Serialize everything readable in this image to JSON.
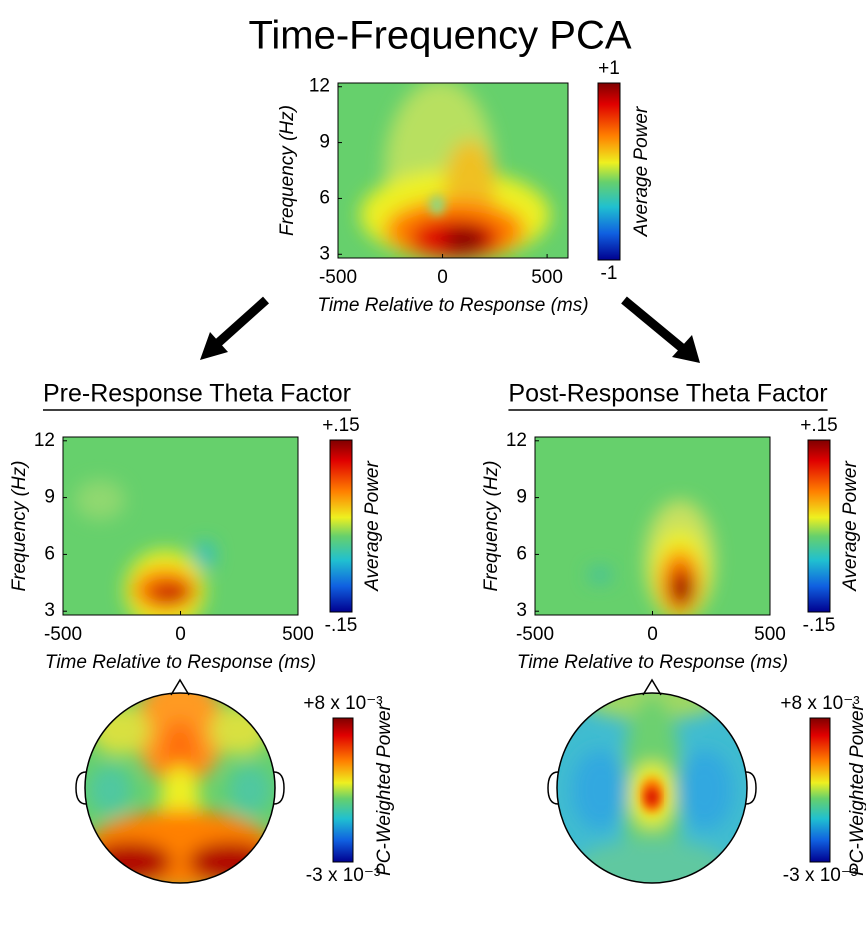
{
  "title": "Time-Frequency PCA",
  "chart_data": [
    {
      "type": "heatmap",
      "xlabel": "Time Relative to Response (ms)",
      "ylabel": "Frequency (Hz)",
      "xlim": [
        -500,
        600
      ],
      "ylim": [
        2.8,
        12.2
      ],
      "xticks": [
        -500,
        0,
        500
      ],
      "yticks": [
        3,
        6,
        9,
        12
      ],
      "colorbar_label": "Average Power",
      "clim": [
        -1,
        1
      ],
      "cticks": [
        {
          "value": 1,
          "label": "+1"
        },
        {
          "value": -1,
          "label": "-1"
        }
      ]
    },
    {
      "type": "heatmap",
      "title": "Pre-Response Theta Factor",
      "xlabel": "Time Relative to Response (ms)",
      "ylabel": "Frequency (Hz)",
      "xlim": [
        -500,
        500
      ],
      "ylim": [
        2.8,
        12.2
      ],
      "xticks": [
        -500,
        0,
        500
      ],
      "yticks": [
        3,
        6,
        9,
        12
      ],
      "colorbar_label": "Average Power",
      "clim": [
        -0.15,
        0.15
      ],
      "cticks": [
        {
          "value": 0.15,
          "label": "+.15"
        },
        {
          "value": -0.15,
          "label": "-.15"
        }
      ]
    },
    {
      "type": "heatmap",
      "title": "Post-Response Theta Factor",
      "xlabel": "Time Relative to Response (ms)",
      "ylabel": "Frequency (Hz)",
      "xlim": [
        -500,
        500
      ],
      "ylim": [
        2.8,
        12.2
      ],
      "xticks": [
        -500,
        0,
        500
      ],
      "yticks": [
        3,
        6,
        9,
        12
      ],
      "colorbar_label": "Average Power",
      "clim": [
        -0.15,
        0.15
      ],
      "cticks": [
        {
          "value": 0.15,
          "label": "+.15"
        },
        {
          "value": -0.15,
          "label": "-.15"
        }
      ]
    },
    {
      "type": "topomap",
      "colorbar_label": "PC-Weighted Power",
      "clim": [
        -0.003,
        0.008
      ],
      "cticks": [
        {
          "value": 0.008,
          "label": "+8 x 10⁻³"
        },
        {
          "value": -0.003,
          "label": "-3 x 10⁻³"
        }
      ]
    },
    {
      "type": "topomap",
      "colorbar_label": "PC-Weighted Power",
      "clim": [
        -0.003,
        0.008
      ],
      "cticks": [
        {
          "value": 0.008,
          "label": "+8 x 10⁻³"
        },
        {
          "value": -0.003,
          "label": "-3 x 10⁻³"
        }
      ]
    }
  ]
}
